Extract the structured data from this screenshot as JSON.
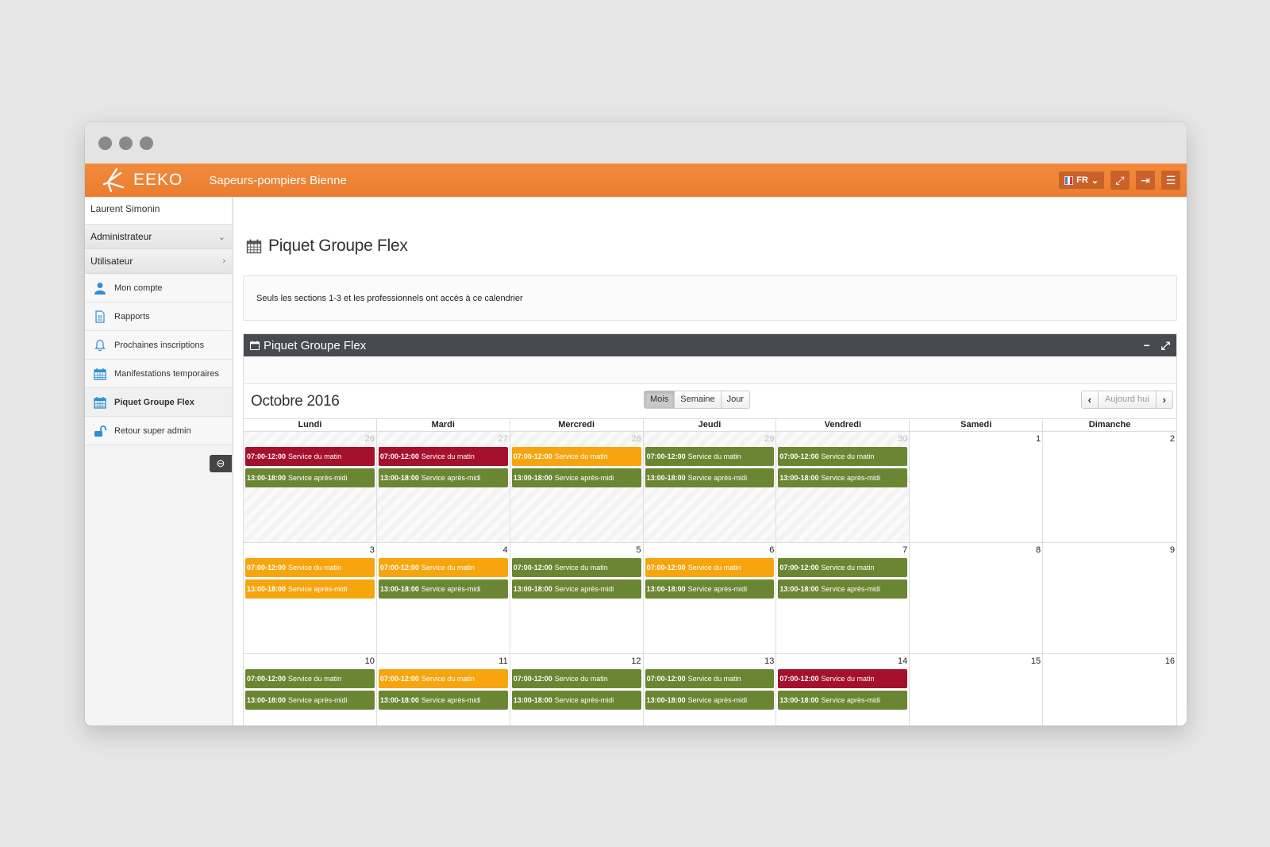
{
  "app": {
    "logo_text": "EEKO",
    "org_name": "Sapeurs-pompiers Bienne",
    "lang_label": "FR",
    "colors": {
      "accent": "#ea7d30",
      "event_red": "#a5102c",
      "event_green": "#6b8633",
      "event_orange": "#f6a50f"
    }
  },
  "sidebar": {
    "user_name": "Laurent Simonin",
    "sections": [
      {
        "label": "Administrateur",
        "chevron": "chevron-down-icon"
      },
      {
        "label": "Utilisateur",
        "chevron": "chevron-right-icon"
      }
    ],
    "items": [
      {
        "label": "Mon compte",
        "icon": "user-icon"
      },
      {
        "label": "Rapports",
        "icon": "document-icon"
      },
      {
        "label": "Prochaines inscriptions",
        "icon": "bell-icon"
      },
      {
        "label": "Manifestations temporaires",
        "icon": "calendar-icon"
      },
      {
        "label": "Piquet Groupe Flex",
        "icon": "calendar-icon",
        "active": true
      },
      {
        "label": "Retour super admin",
        "icon": "unlock-icon"
      }
    ]
  },
  "page": {
    "title": "Piquet Groupe Flex",
    "notice": "Seuls les sections 1-3 et les professionnels ont accès à ce calendrier"
  },
  "widget": {
    "title": "Piquet Groupe Flex"
  },
  "calendar": {
    "month_title": "Octobre 2016",
    "views": [
      "Mois",
      "Semaine",
      "Jour"
    ],
    "active_view": "Mois",
    "today_label": "Aujourd hui",
    "weekdays": [
      "Lundi",
      "Mardi",
      "Mercredi",
      "Jeudi",
      "Vendredi",
      "Samedi",
      "Dimanche"
    ],
    "weeks": [
      [
        {
          "day": "26",
          "other": true,
          "events": [
            {
              "time": "07:00-12:00",
              "title": "Service du matin",
              "color": "red"
            },
            {
              "time": "13:00-18:00",
              "title": "Service après-midi",
              "color": "green"
            }
          ]
        },
        {
          "day": "27",
          "other": true,
          "events": [
            {
              "time": "07:00-12:00",
              "title": "Service du matin",
              "color": "red"
            },
            {
              "time": "13:00-18:00",
              "title": "Service après-midi",
              "color": "green"
            }
          ]
        },
        {
          "day": "28",
          "other": true,
          "events": [
            {
              "time": "07:00-12:00",
              "title": "Service du matin",
              "color": "orange"
            },
            {
              "time": "13:00-18:00",
              "title": "Service après-midi",
              "color": "green"
            }
          ]
        },
        {
          "day": "29",
          "other": true,
          "events": [
            {
              "time": "07:00-12:00",
              "title": "Service du matin",
              "color": "green"
            },
            {
              "time": "13:00-18:00",
              "title": "Service après-midi",
              "color": "green"
            }
          ]
        },
        {
          "day": "30",
          "other": true,
          "events": [
            {
              "time": "07:00-12:00",
              "title": "Service du matin",
              "color": "green"
            },
            {
              "time": "13:00-18:00",
              "title": "Service après-midi",
              "color": "green"
            }
          ]
        },
        {
          "day": "1",
          "events": []
        },
        {
          "day": "2",
          "events": []
        }
      ],
      [
        {
          "day": "3",
          "events": [
            {
              "time": "07:00-12:00",
              "title": "Service du matin",
              "color": "orange"
            },
            {
              "time": "13:00-18:00",
              "title": "Service après-midi",
              "color": "orange"
            }
          ]
        },
        {
          "day": "4",
          "events": [
            {
              "time": "07:00-12:00",
              "title": "Service du matin",
              "color": "orange"
            },
            {
              "time": "13:00-18:00",
              "title": "Service après-midi",
              "color": "green"
            }
          ]
        },
        {
          "day": "5",
          "events": [
            {
              "time": "07:00-12:00",
              "title": "Service du matin",
              "color": "green"
            },
            {
              "time": "13:00-18:00",
              "title": "Service après-midi",
              "color": "green"
            }
          ]
        },
        {
          "day": "6",
          "events": [
            {
              "time": "07:00-12:00",
              "title": "Service du matin",
              "color": "orange"
            },
            {
              "time": "13:00-18:00",
              "title": "Service après-midi",
              "color": "green"
            }
          ]
        },
        {
          "day": "7",
          "events": [
            {
              "time": "07:00-12:00",
              "title": "Service du matin",
              "color": "green"
            },
            {
              "time": "13:00-18:00",
              "title": "Service après-midi",
              "color": "green"
            }
          ]
        },
        {
          "day": "8",
          "events": []
        },
        {
          "day": "9",
          "events": []
        }
      ],
      [
        {
          "day": "10",
          "events": [
            {
              "time": "07:00-12:00",
              "title": "Service du matin",
              "color": "green"
            },
            {
              "time": "13:00-18:00",
              "title": "Service après-midi",
              "color": "green"
            }
          ]
        },
        {
          "day": "11",
          "events": [
            {
              "time": "07:00-12:00",
              "title": "Service du matin",
              "color": "orange"
            },
            {
              "time": "13:00-18:00",
              "title": "Service après-midi",
              "color": "green"
            }
          ]
        },
        {
          "day": "12",
          "events": [
            {
              "time": "07:00-12:00",
              "title": "Service du matin",
              "color": "green"
            },
            {
              "time": "13:00-18:00",
              "title": "Service après-midi",
              "color": "green"
            }
          ]
        },
        {
          "day": "13",
          "events": [
            {
              "time": "07:00-12:00",
              "title": "Service du matin",
              "color": "green"
            },
            {
              "time": "13:00-18:00",
              "title": "Service après-midi",
              "color": "green"
            }
          ]
        },
        {
          "day": "14",
          "events": [
            {
              "time": "07:00-12:00",
              "title": "Service du matin",
              "color": "red"
            },
            {
              "time": "13:00-18:00",
              "title": "Service après-midi",
              "color": "green"
            }
          ]
        },
        {
          "day": "15",
          "events": []
        },
        {
          "day": "16",
          "events": []
        }
      ]
    ]
  }
}
